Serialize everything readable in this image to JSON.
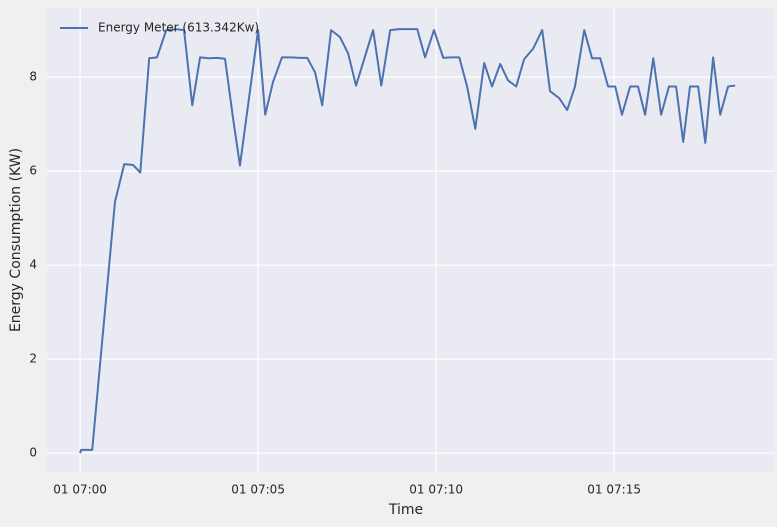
{
  "chart_data": {
    "type": "line",
    "xlabel": "Time",
    "ylabel": "Energy Consumption (KW)",
    "x": [
      0,
      0.03,
      0.34,
      0.98,
      1.24,
      1.49,
      1.69,
      1.94,
      2.16,
      2.42,
      2.67,
      2.92,
      3.15,
      3.37,
      3.62,
      3.85,
      4.07,
      4.3,
      4.49,
      5.0,
      5.2,
      5.42,
      5.67,
      5.93,
      6.18,
      6.38,
      6.6,
      6.8,
      7.05,
      7.3,
      7.53,
      7.75,
      8.23,
      8.46,
      8.71,
      8.96,
      9.21,
      9.47,
      9.69,
      9.94,
      10.2,
      10.42,
      10.65,
      10.87,
      11.1,
      11.35,
      11.57,
      11.8,
      12.02,
      12.25,
      12.47,
      12.72,
      12.98,
      13.2,
      13.46,
      13.68,
      13.9,
      14.16,
      14.38,
      14.61,
      14.83,
      15.03,
      15.22,
      15.45,
      15.67,
      15.87,
      16.1,
      16.32,
      16.54,
      16.74,
      16.94,
      17.13,
      17.36,
      17.56,
      17.78,
      17.98,
      18.2,
      18.4
    ],
    "series": [
      {
        "name": "Energy Meter (613.342Kw)",
        "color": "#4c72b0",
        "values": [
          0,
          0.07,
          0.07,
          5.35,
          6.15,
          6.13,
          5.97,
          8.4,
          8.42,
          9.0,
          9.02,
          9.0,
          7.4,
          8.42,
          8.4,
          8.41,
          8.39,
          7.1,
          6.12,
          9.0,
          7.2,
          7.9,
          8.42,
          8.42,
          8.41,
          8.41,
          8.1,
          7.4,
          9.0,
          8.85,
          8.5,
          7.82,
          9.0,
          7.82,
          9.0,
          9.02,
          9.02,
          9.02,
          8.42,
          9.0,
          8.41,
          8.42,
          8.42,
          7.8,
          6.9,
          8.3,
          7.8,
          8.28,
          7.93,
          7.8,
          8.38,
          8.6,
          9.0,
          7.7,
          7.55,
          7.3,
          7.8,
          9.0,
          8.4,
          8.4,
          7.8,
          7.8,
          7.2,
          7.8,
          7.8,
          7.2,
          8.4,
          7.2,
          7.8,
          7.8,
          6.62,
          7.8,
          7.8,
          6.6,
          8.42,
          7.2,
          7.8,
          7.82
        ]
      }
    ],
    "xlim": [
      -0.93,
      19.49
    ],
    "xticks": [
      {
        "value": 0,
        "label": "01 07:00"
      },
      {
        "value": 5,
        "label": "01 07:05"
      },
      {
        "value": 10,
        "label": "01 07:10"
      },
      {
        "value": 15,
        "label": "01 07:15"
      }
    ],
    "ylim": [
      -0.4,
      9.47
    ],
    "yticks": [
      0,
      2,
      4,
      6,
      8
    ],
    "grid": true,
    "legend": "upper-left"
  }
}
